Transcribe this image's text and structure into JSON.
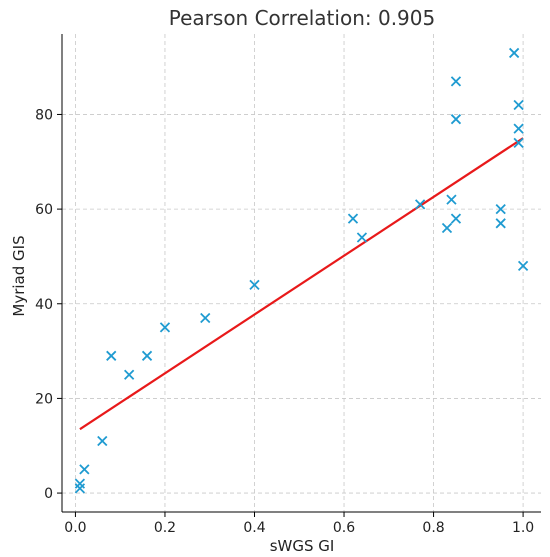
{
  "chart_data": {
    "type": "scatter",
    "title": "Pearson Correlation: 0.905",
    "xlabel": "sWGS GI",
    "ylabel": "Myriad GIS",
    "xlim": [
      -0.03,
      1.04
    ],
    "ylim": [
      -4,
      97
    ],
    "xticks": [
      0.0,
      0.2,
      0.4,
      0.6,
      0.8,
      1.0
    ],
    "xtick_labels": [
      "0.0",
      "0.2",
      "0.4",
      "0.6",
      "0.8",
      "1.0"
    ],
    "yticks": [
      0,
      20,
      40,
      60,
      80
    ],
    "ytick_labels": [
      "0",
      "20",
      "40",
      "60",
      "80"
    ],
    "grid": true,
    "marker": "x",
    "colors": {
      "points": "#1f9bd1",
      "fit_line": "#e8191a"
    },
    "series": [
      {
        "x": [
          0.01,
          0.01,
          0.02,
          0.06,
          0.08,
          0.12,
          0.16,
          0.2,
          0.29,
          0.4,
          0.62,
          0.64,
          0.77,
          0.83,
          0.84,
          0.85,
          0.85,
          0.85,
          0.95,
          0.95,
          0.98,
          0.99,
          0.99,
          0.99,
          1.0
        ],
        "y": [
          1,
          2,
          5,
          11,
          29,
          25,
          29,
          35,
          37,
          44,
          58,
          54,
          61,
          56,
          62,
          58,
          79,
          87,
          57,
          60,
          93,
          82,
          77,
          74,
          48
        ]
      }
    ],
    "fit_line": {
      "x": [
        0.01,
        1.0
      ],
      "y": [
        13.5,
        75
      ]
    }
  }
}
